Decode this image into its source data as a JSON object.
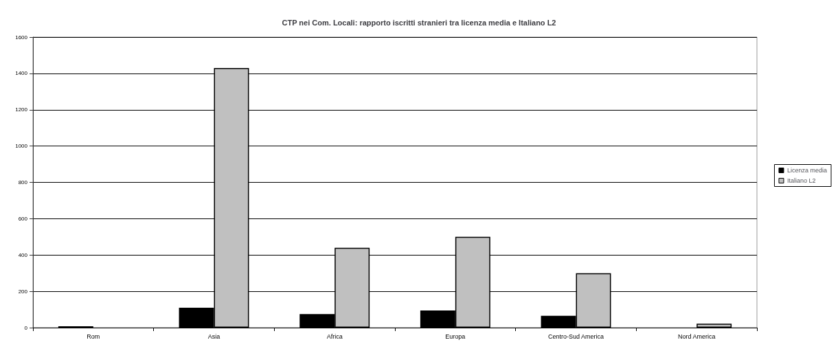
{
  "chart_data": {
    "type": "bar",
    "title": "CTP nei Com. Locali: rapporto iscritti stranieri tra licenza media e Italiano L2",
    "categories": [
      "Rom",
      "Asia",
      "Africa",
      "Europa",
      "Centro-Sud America",
      "Nord America"
    ],
    "series": [
      {
        "name": "Licenza media",
        "color": "#000000",
        "values": [
          8,
          110,
          75,
          95,
          65,
          0
        ]
      },
      {
        "name": "Italiano L2",
        "color": "#c0c0c0",
        "values": [
          0,
          1430,
          440,
          500,
          300,
          22
        ]
      }
    ],
    "ylim": [
      0,
      1600
    ],
    "yticks": [
      0,
      200,
      400,
      600,
      800,
      1000,
      1200,
      1400,
      1600
    ],
    "grid": "y",
    "legend": "right"
  }
}
